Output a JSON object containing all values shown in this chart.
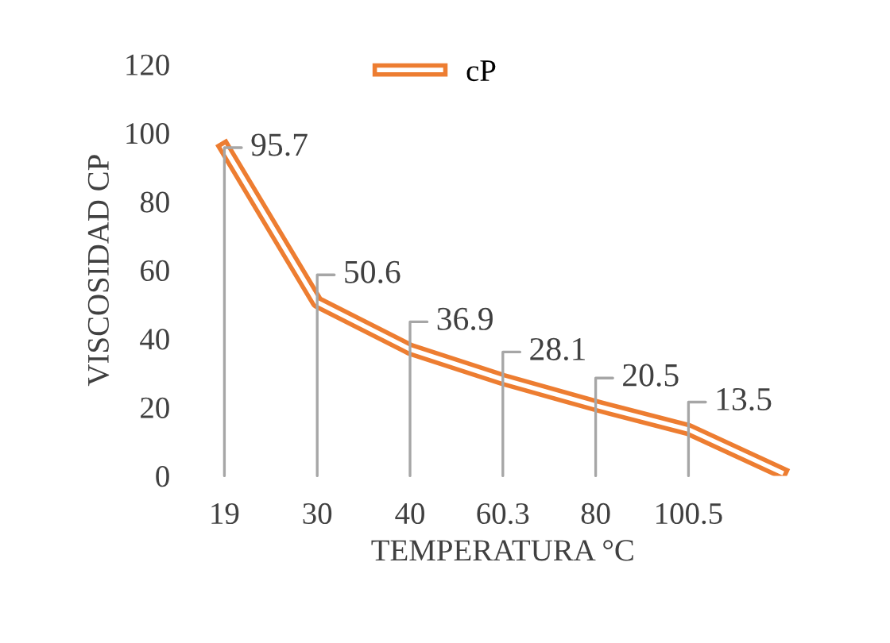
{
  "chart_data": {
    "type": "line",
    "xlabel": "TEMPERATURA °C",
    "ylabel": "VISCOSIDAD CP",
    "categories": [
      "19",
      "30",
      "40",
      "60.3",
      "80",
      "100.5",
      null
    ],
    "series": [
      {
        "name": "cP",
        "color": "#ed7d31",
        "values": [
          95.7,
          50.6,
          36.9,
          28.1,
          20.5,
          13.5,
          1
        ],
        "value_labels": [
          "95.7",
          "50.6",
          "36.9",
          "28.1",
          "20.5",
          "13.5",
          null
        ]
      }
    ],
    "ylim": [
      0,
      120
    ],
    "yticks": [
      0,
      20,
      40,
      60,
      80,
      100,
      120
    ],
    "grid": false,
    "legend": "top",
    "marker": "none",
    "line_style": "solid"
  }
}
